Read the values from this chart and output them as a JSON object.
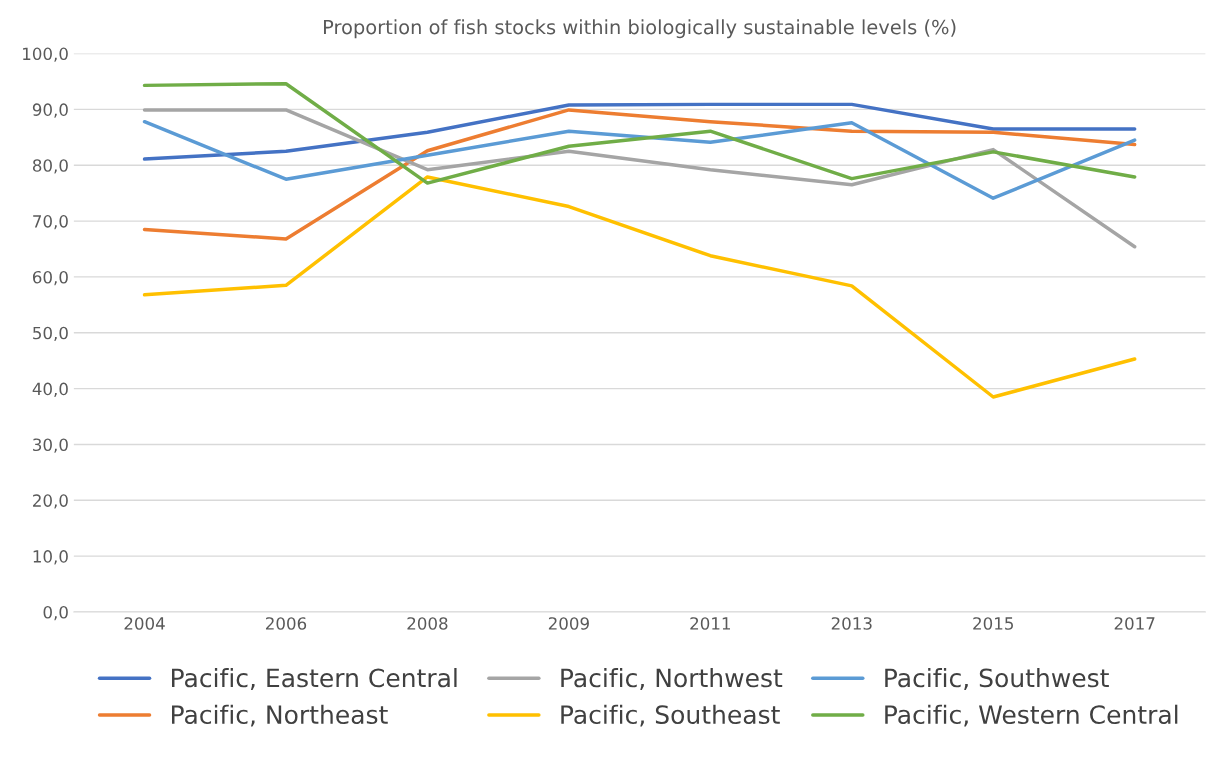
{
  "chart_data": {
    "type": "line",
    "title": "Proportion of fish stocks within biologically sustainable levels (%)",
    "categories": [
      "2004",
      "2006",
      "2008",
      "2009",
      "2011",
      "2013",
      "2015",
      "2017"
    ],
    "series": [
      {
        "name": "Pacific, Eastern Central",
        "color": "#4472c4",
        "values": [
          81.1,
          82.5,
          85.9,
          90.8,
          90.9,
          90.9,
          86.5,
          86.5
        ]
      },
      {
        "name": "Pacific, Northeast",
        "color": "#ed7d31",
        "values": [
          68.5,
          66.8,
          82.6,
          89.9,
          87.8,
          86.1,
          85.9,
          83.7
        ]
      },
      {
        "name": "Pacific, Northwest",
        "color": "#a5a5a5",
        "values": [
          89.9,
          89.9,
          79.2,
          82.5,
          79.2,
          76.5,
          82.8,
          65.4
        ]
      },
      {
        "name": "Pacific, Southeast",
        "color": "#ffc000",
        "values": [
          56.8,
          58.5,
          77.9,
          72.6,
          63.8,
          58.4,
          38.5,
          45.3
        ]
      },
      {
        "name": "Pacific, Southwest",
        "color": "#5b9bd5",
        "values": [
          87.8,
          77.5,
          81.8,
          86.1,
          84.1,
          87.6,
          74.1,
          84.5
        ]
      },
      {
        "name": "Pacific, Western Central",
        "color": "#70ad47",
        "values": [
          94.3,
          94.6,
          76.8,
          83.4,
          86.1,
          77.6,
          82.4,
          77.9
        ]
      }
    ],
    "ylim": [
      0,
      100
    ],
    "yticks": [
      {
        "value": 0,
        "label": "0,0"
      },
      {
        "value": 10,
        "label": "10,0"
      },
      {
        "value": 20,
        "label": "20,0"
      },
      {
        "value": 30,
        "label": "30,0"
      },
      {
        "value": 40,
        "label": "40,0"
      },
      {
        "value": 50,
        "label": "50,0"
      },
      {
        "value": 60,
        "label": "60,0"
      },
      {
        "value": 70,
        "label": "70,0"
      },
      {
        "value": 80,
        "label": "80,0"
      },
      {
        "value": 90,
        "label": "90,0"
      },
      {
        "value": 100,
        "label": "100,0"
      }
    ],
    "grid": "y",
    "legend": "bottom",
    "marker": "none",
    "line_style": "solid"
  }
}
